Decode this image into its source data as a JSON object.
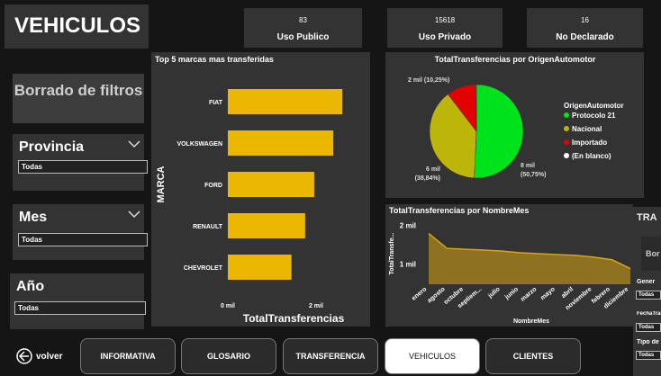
{
  "header": {
    "title": "VEHICULOS"
  },
  "cards": [
    {
      "value": 83,
      "label": "Uso Publico"
    },
    {
      "value": 15618,
      "label": "Uso Privado"
    },
    {
      "value": 16,
      "label": "No Declarado"
    }
  ],
  "clear_button": "Borrado de filtros",
  "filters": [
    {
      "label": "Provincia",
      "value": "Todas"
    },
    {
      "label": "Mes",
      "value": "Todas"
    },
    {
      "label": "Año",
      "value": "Todas"
    }
  ],
  "nav": {
    "back": "volver",
    "tabs": [
      "INFORMATIVA",
      "GLOSARIO",
      "TRANSFERENCIA",
      "VEHICULOS",
      "CLIENTES"
    ],
    "active": 3
  },
  "side_panel": {
    "title": "TRA",
    "button": "Bor",
    "filters": [
      {
        "label": "Gener",
        "value": "Todas"
      },
      {
        "label": "FechaTrans",
        "value": "Todas"
      },
      {
        "label": "Tipo de",
        "value": "Todas"
      }
    ]
  },
  "chart_data": [
    {
      "type": "bar",
      "orientation": "horizontal",
      "title": "Top 5 marcas mas transferidas",
      "categories": [
        "FIAT",
        "VOLKSWAGEN",
        "FORD",
        "RENAULT",
        "CHEVROLET"
      ],
      "values": [
        2598,
        2392,
        1959,
        1753,
        1443
      ],
      "color": "#ebb700",
      "x_label": "TotalTransferencias",
      "y_label": "MARCA",
      "xlim": [
        0,
        2900
      ],
      "xticks": [
        {
          "value": 0,
          "label": "0 mil"
        },
        {
          "value": 2000,
          "label": "2 mil"
        }
      ]
    },
    {
      "type": "pie",
      "title": "TotalTransferencias por OrigenAutomotor",
      "legend_title": "OrigenAutomotor",
      "categories": [
        "Protocolo 21",
        "Nacional",
        "Importado",
        "(En blanco)"
      ],
      "values": [
        7976,
        6104,
        1611,
        25
      ],
      "value_labels": [
        "8 mil (50,75%)",
        "6 mil (38,84%)",
        "2 mil (10,25%)",
        null
      ],
      "colors": [
        "#00e31c",
        "#bdb60a",
        "#e30000",
        "#ffffff"
      ]
    },
    {
      "type": "area",
      "title": "TotalTransferencias por NombreMes",
      "categories": [
        "enero",
        "agosto",
        "octubre",
        "septiem...",
        "julio",
        "junio",
        "marzo",
        "mayo",
        "abril",
        "noviembre",
        "febrero",
        "diciembre"
      ],
      "values": [
        1795,
        1410,
        1386,
        1364,
        1340,
        1295,
        1273,
        1250,
        1227,
        1182,
        1114,
        886
      ],
      "color": "#d9a514",
      "x_label": "NombreMes",
      "y_label": "TotalTransfe...",
      "ylim": [
        480,
        2250
      ],
      "yticks": [
        {
          "value": 1000,
          "label": "1 mil"
        },
        {
          "value": 2000,
          "label": "2 mil"
        }
      ]
    }
  ]
}
